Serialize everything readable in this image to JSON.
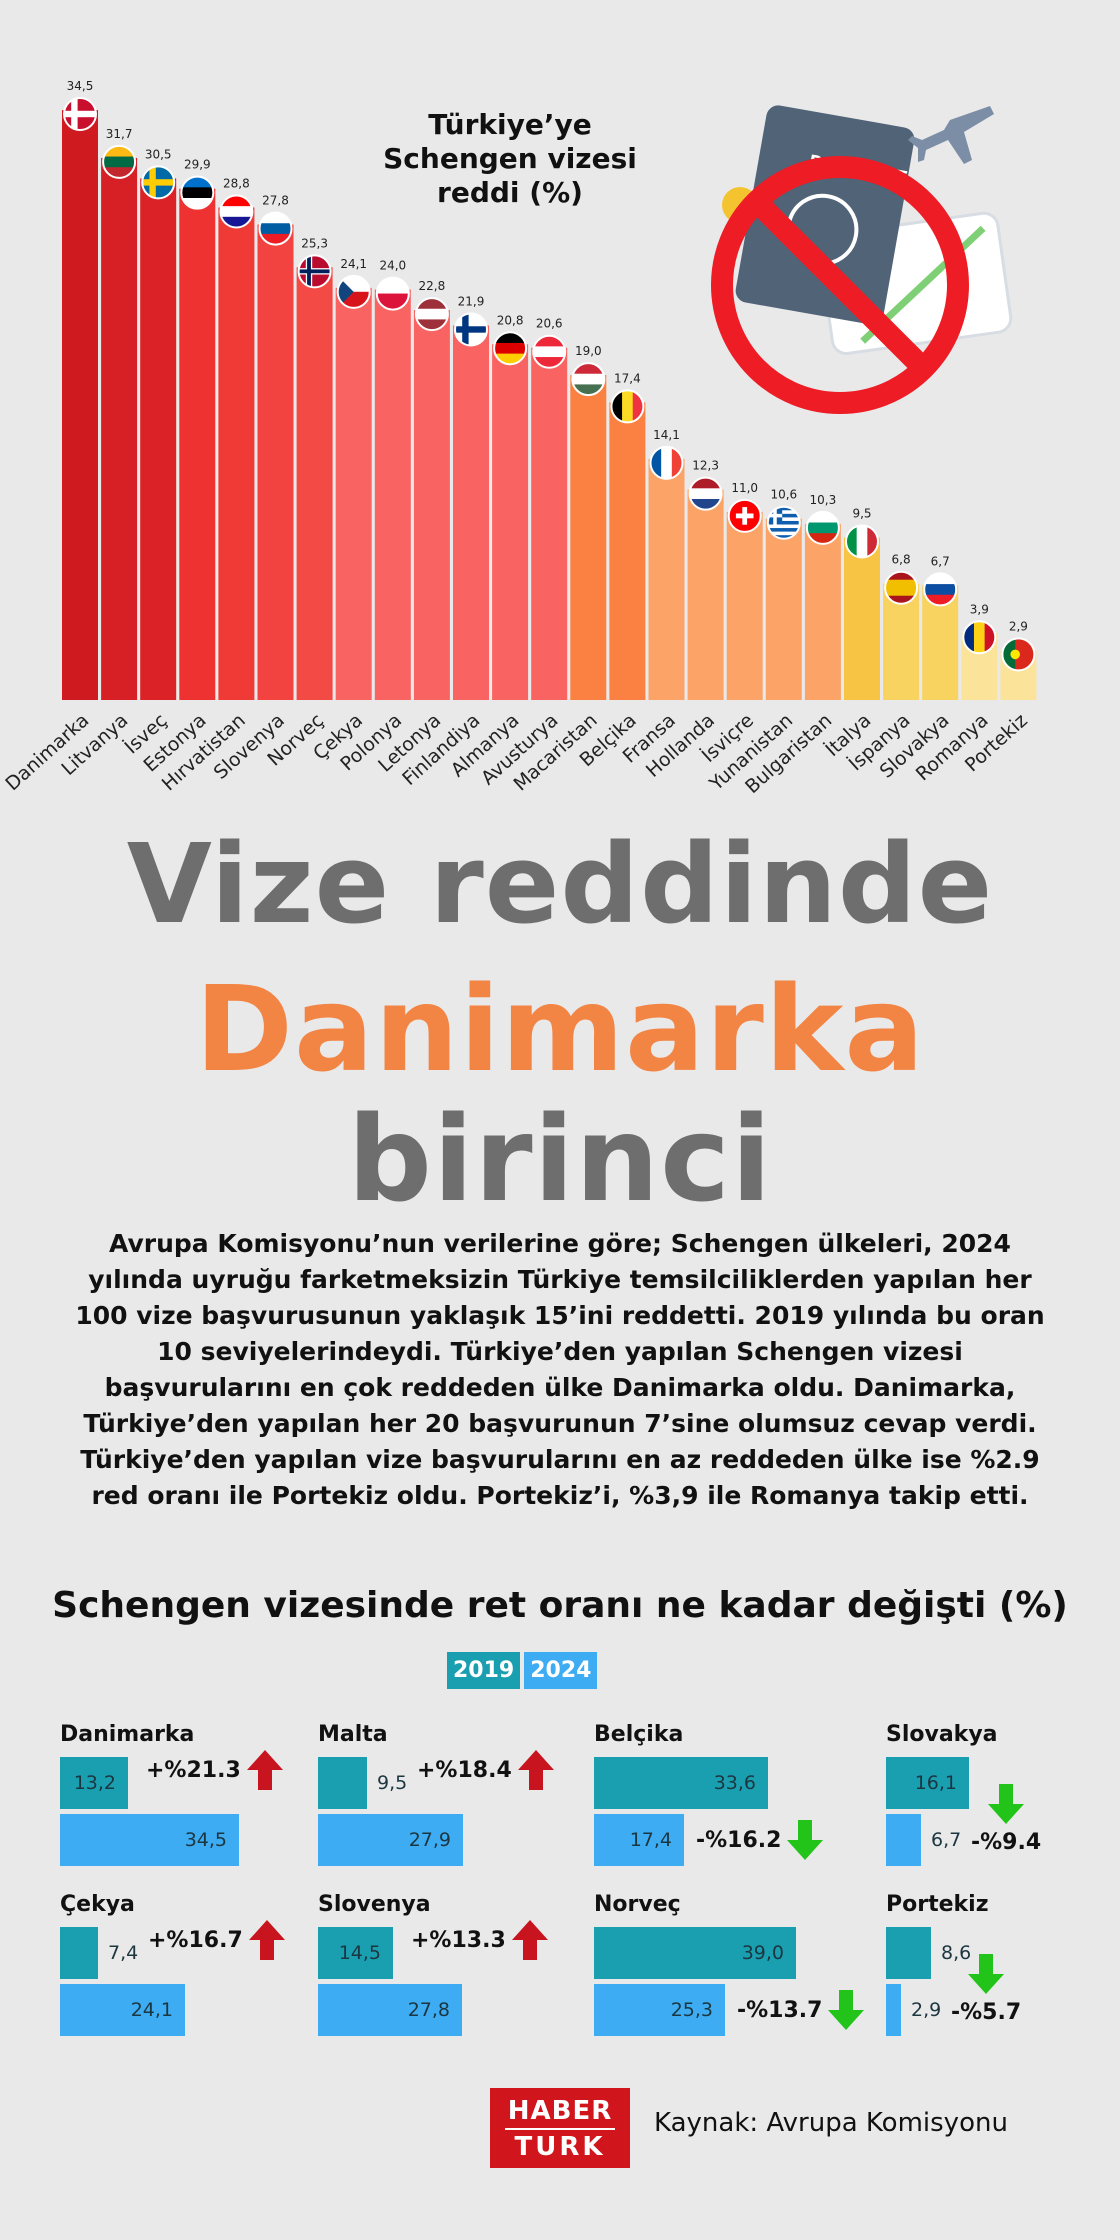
{
  "chart_data": [
    {
      "type": "bar",
      "title": "Türkiye’ye Schengen vizesi reddi (%)",
      "categories": [
        "Danimarka",
        "Litvanya",
        "İsveç",
        "Estonya",
        "Hırvatistan",
        "Slovenya",
        "Norveç",
        "Çekya",
        "Polonya",
        "Letonya",
        "Finlandiya",
        "Almanya",
        "Avusturya",
        "Macaristan",
        "Belçika",
        "Fransa",
        "Hollanda",
        "İsviçre",
        "Yunanistan",
        "Bulgaristan",
        "İtalya",
        "İspanya",
        "Slovakya",
        "Romanya",
        "Portekiz"
      ],
      "values": [
        34.5,
        31.7,
        30.5,
        29.9,
        28.8,
        27.8,
        25.3,
        24.1,
        24.0,
        22.8,
        21.9,
        20.8,
        20.6,
        19.0,
        17.4,
        14.1,
        12.3,
        11.0,
        10.6,
        10.3,
        9.5,
        6.8,
        6.7,
        3.9,
        2.9
      ],
      "value_labels": [
        "34,5",
        "31,7",
        "30,5",
        "29,9",
        "28,8",
        "27,8",
        "25,3",
        "24,1",
        "24,0",
        "22,8",
        "21,9",
        "20,8",
        "20,6",
        "19,0",
        "17,4",
        "14,1",
        "12,3",
        "11,0",
        "10,6",
        "10,3",
        "9,5",
        "6,8",
        "6,7",
        "3,9",
        "2,9"
      ],
      "ylim": [
        0,
        34.5
      ],
      "bar_colors": [
        "#cf1b1f",
        "#d72025",
        "#db2327",
        "#ee3232",
        "#f03a36",
        "#f34340",
        "#f44a45",
        "#f96462",
        "#f96462",
        "#f96462",
        "#f96462",
        "#f96462",
        "#f96462",
        "#fb8142",
        "#fb8142",
        "#fca468",
        "#fca468",
        "#fca468",
        "#fca468",
        "#fca468",
        "#f8c443",
        "#f8d35f",
        "#f8d35f",
        "#fbe499",
        "#fbe499"
      ],
      "flags": [
        "flag-denmark",
        "flag-lithuania",
        "flag-sweden",
        "flag-estonia",
        "flag-croatia",
        "flag-slovenia",
        "flag-norway",
        "flag-czechia",
        "flag-poland",
        "flag-latvia",
        "flag-finland",
        "flag-germany",
        "flag-austria",
        "flag-hungary",
        "flag-belgium",
        "flag-france",
        "flag-netherlands",
        "flag-switzerland",
        "flag-greece",
        "flag-bulgaria",
        "flag-italy",
        "flag-spain",
        "flag-slovakia",
        "flag-romania",
        "flag-portugal"
      ]
    },
    {
      "type": "bar",
      "title": "Schengen vizesinde ret oranı ne kadar değişti (%)",
      "series_names": [
        "2019",
        "2024"
      ],
      "items": [
        {
          "name": "Danimarka",
          "v2019": 13.2,
          "v2024": 34.5,
          "l2019": "13,2",
          "l2024": "34,5",
          "change": "+%21.3",
          "dir": "up"
        },
        {
          "name": "Malta",
          "v2019": 9.5,
          "v2024": 27.9,
          "l2019": "9,5",
          "l2024": "27,9",
          "change": "+%18.4",
          "dir": "up"
        },
        {
          "name": "Belçika",
          "v2019": 33.6,
          "v2024": 17.4,
          "l2019": "33,6",
          "l2024": "17,4",
          "change": "-%16.2",
          "dir": "down"
        },
        {
          "name": "Slovakya",
          "v2019": 16.1,
          "v2024": 6.7,
          "l2019": "16,1",
          "l2024": "6,7",
          "change": "-%9.4",
          "dir": "down"
        },
        {
          "name": "Çekya",
          "v2019": 7.4,
          "v2024": 24.1,
          "l2019": "7,4",
          "l2024": "24,1",
          "change": "+%16.7",
          "dir": "up"
        },
        {
          "name": "Slovenya",
          "v2019": 14.5,
          "v2024": 27.8,
          "l2019": "14,5",
          "l2024": "27,8",
          "change": "+%13.3",
          "dir": "up"
        },
        {
          "name": "Norveç",
          "v2019": 39.0,
          "v2024": 25.3,
          "l2019": "39,0",
          "l2024": "25,3",
          "change": "-%13.7",
          "dir": "down"
        },
        {
          "name": "Portekiz",
          "v2019": 8.6,
          "v2024": 2.9,
          "l2019": "8,6",
          "l2024": "2,9",
          "change": "-%5.7",
          "dir": "down"
        }
      ]
    }
  ],
  "headline": {
    "line1": "Vize reddinde",
    "line2": "Danimarka",
    "line3": "birinci"
  },
  "body": "Avrupa Komisyonu’nun verilerine göre; Schengen ülkeleri, 2024 yılında uyruğu farketmeksizin Türkiye temsilciliklerden yapılan her 100 vize başvurusunun yaklaşık 15’ini reddetti. 2019 yılında bu oran 10 seviyelerindeydi. Türkiye’den yapılan Schengen vizesi başvurularını en çok reddeden ülke Danimarka oldu. Danimarka, Türkiye’den yapılan her 20 başvurunun 7’sine olumsuz cevap verdi. Türkiye’den yapılan vize başvurularını en az reddeden ülke ise %2.9 red oranı ile Portekiz oldu. Portekiz’i, %3,9 ile Romanya takip etti.",
  "illustration": {
    "passport_text": "PASSPORT",
    "icon": "no-entry-passport-icon"
  },
  "colors": {
    "up_arrow": "#c8141e",
    "down_arrow": "#22c41a",
    "bar_2019": "#1a9fb1",
    "bar_2024": "#3dacf2",
    "accent": "#f28444"
  },
  "logo": {
    "line1": "HABER",
    "line2": "TURK"
  },
  "source": "Kaynak: Avrupa Komisyonu"
}
